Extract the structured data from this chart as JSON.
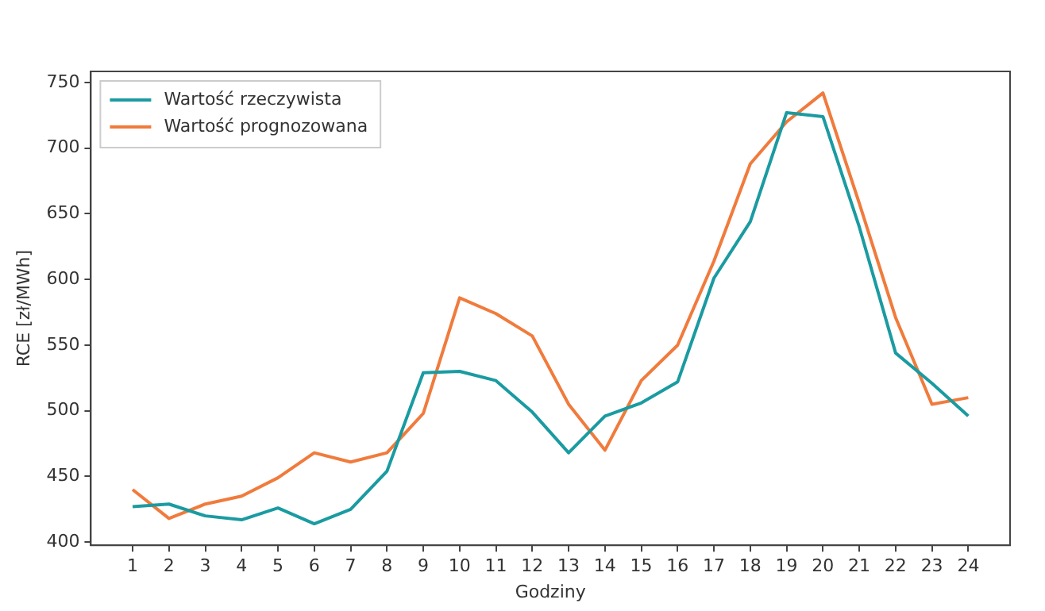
{
  "chart_data": {
    "type": "line",
    "xlabel": "Godziny",
    "ylabel": "RCE [zł/MWh]",
    "x": [
      1,
      2,
      3,
      4,
      5,
      6,
      7,
      8,
      9,
      10,
      11,
      12,
      13,
      14,
      15,
      16,
      17,
      18,
      19,
      20,
      21,
      22,
      23,
      24
    ],
    "series": [
      {
        "name": "Wartość rzeczywista",
        "color": "#1a9ba1",
        "values": [
          427,
          429,
          420,
          417,
          426,
          414,
          425,
          454,
          529,
          530,
          523,
          499,
          468,
          496,
          506,
          522,
          601,
          644,
          727,
          724,
          640,
          544,
          521,
          496
        ]
      },
      {
        "name": "Wartość prognozowana",
        "color": "#f07b3c",
        "values": [
          440,
          418,
          429,
          435,
          449,
          468,
          461,
          468,
          498,
          586,
          574,
          557,
          505,
          470,
          523,
          550,
          614,
          688,
          720,
          742,
          658,
          571,
          505,
          510
        ]
      }
    ],
    "xlim": [
      -0.15,
      25.15
    ],
    "xticks": [
      1,
      2,
      3,
      4,
      5,
      6,
      7,
      8,
      9,
      10,
      11,
      12,
      13,
      14,
      15,
      16,
      17,
      18,
      19,
      20,
      21,
      22,
      23,
      24
    ],
    "ylim": [
      397.6,
      758.4
    ],
    "yticks": [
      400,
      450,
      500,
      550,
      600,
      650,
      700,
      750
    ],
    "grid": false,
    "legend": "top left",
    "marker": "none",
    "line_style": "solid"
  }
}
